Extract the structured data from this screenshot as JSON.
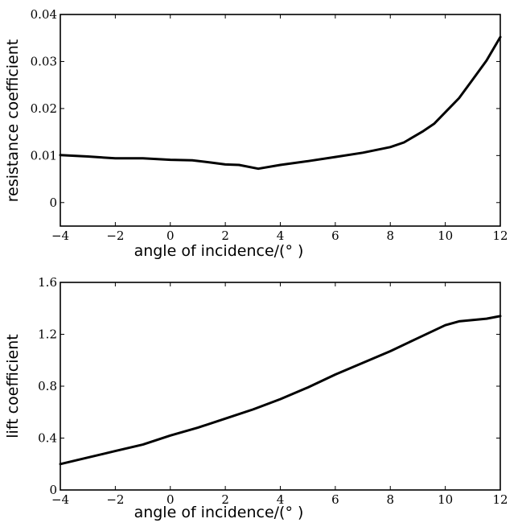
{
  "chart_data": [
    {
      "type": "line",
      "xlabel": "angle of incidence/(°  )",
      "ylabel": "resistance coefficient",
      "xlim": [
        -4,
        12
      ],
      "ylim": [
        -0.005,
        0.04
      ],
      "xticks": [
        -4,
        -2,
        0,
        2,
        4,
        6,
        8,
        10,
        12
      ],
      "xtick_labels": [
        "−4",
        "−2",
        "0",
        "2",
        "4",
        "6",
        "8",
        "10",
        "12"
      ],
      "yticks": [
        0,
        0.01,
        0.02,
        0.03,
        0.04
      ],
      "ytick_labels": [
        "0",
        "0.01",
        "0.02",
        "0.03",
        "0.04"
      ],
      "grid": false,
      "series": [
        {
          "x": [
            -4,
            -3,
            -2,
            -1,
            0,
            0.8,
            1.5,
            2,
            2.5,
            3.2,
            4,
            5,
            6,
            7,
            8,
            8.5,
            9.2,
            9.6,
            10,
            10.5,
            11,
            11.5,
            12
          ],
          "y": [
            0.0101,
            0.0098,
            0.0094,
            0.0094,
            0.0091,
            0.009,
            0.0085,
            0.0081,
            0.008,
            0.0072,
            0.008,
            0.0088,
            0.0097,
            0.0106,
            0.0118,
            0.0128,
            0.0152,
            0.0168,
            0.0192,
            0.0222,
            0.0262,
            0.0302,
            0.0352
          ]
        }
      ]
    },
    {
      "type": "line",
      "xlabel": "angle of incidence/(°  )",
      "ylabel": "lift coefficient",
      "xlim": [
        -4,
        12
      ],
      "ylim": [
        0,
        1.6
      ],
      "xticks": [
        -4,
        -2,
        0,
        2,
        4,
        6,
        8,
        10,
        12
      ],
      "xtick_labels": [
        "−4",
        "−2",
        "0",
        "2",
        "4",
        "6",
        "8",
        "10",
        "12"
      ],
      "yticks": [
        0,
        0.4,
        0.8,
        1.2,
        1.6
      ],
      "ytick_labels": [
        "0",
        "0.4",
        "0.8",
        "1.2",
        "1.6"
      ],
      "grid": false,
      "series": [
        {
          "x": [
            -4,
            -3,
            -2,
            -1,
            0,
            1,
            2,
            3,
            4,
            5,
            6,
            7,
            8,
            9,
            10,
            10.5,
            11,
            11.5,
            12
          ],
          "y": [
            0.2,
            0.25,
            0.3,
            0.35,
            0.42,
            0.48,
            0.55,
            0.62,
            0.7,
            0.79,
            0.89,
            0.98,
            1.07,
            1.17,
            1.27,
            1.3,
            1.31,
            1.32,
            1.34
          ]
        }
      ]
    }
  ]
}
